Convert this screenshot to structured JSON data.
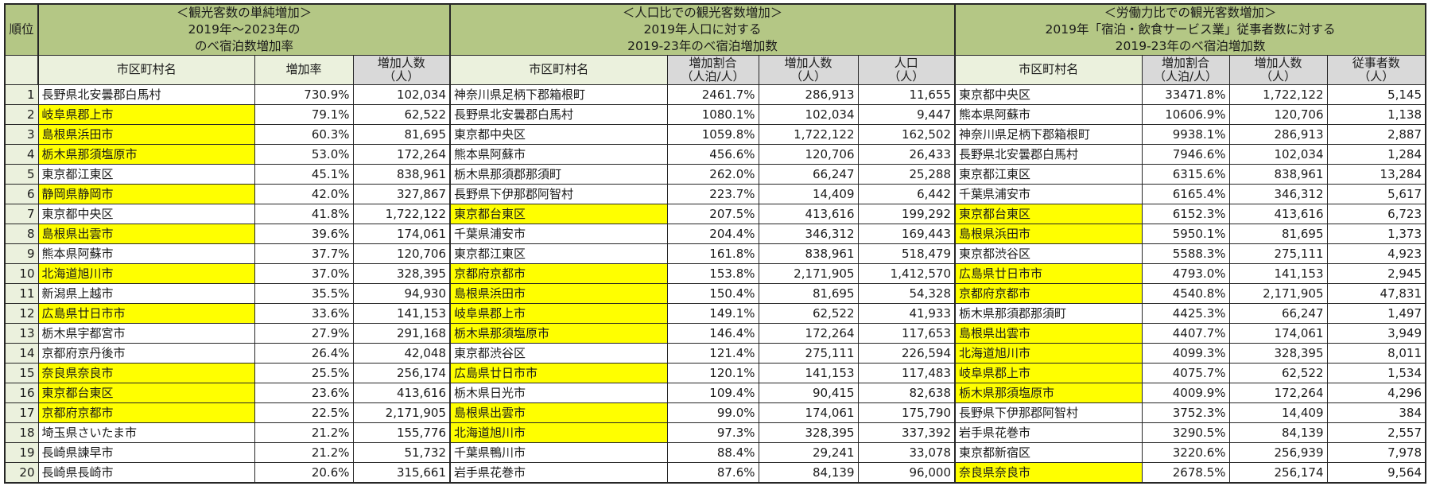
{
  "colors": {
    "band_green": "#b4c785",
    "header_light_green": "#ebf1dd",
    "header_gray": "#d9d9d9",
    "highlight_yellow": "#ffff00",
    "border": "#262626"
  },
  "header": {
    "rank": "順位",
    "groups": [
      {
        "title": "＜観光客数の単純増加＞\n2019年～2023年の\nのべ宿泊数増加率"
      },
      {
        "title": "＜人口比での観光客数増加＞\n2019年人口に対する\n2019-23年のべ宿泊増加数"
      },
      {
        "title": "＜労働力比での観光客数増加＞\n2019年「宿泊・飲食サービス業」従事者数に対する\n2019-23年のべ宿泊増加数"
      }
    ],
    "columns": {
      "s1_name": "市区町村名",
      "s1_rate": "増加率",
      "s1_count": "増加人数\n（人）",
      "s2_name": "市区町村名",
      "s2_ratio": "増加割合\n（人泊/人）",
      "s2_count": "増加人数\n（人）",
      "s2_pop": "人口\n（人）",
      "s3_name": "市区町村名",
      "s3_ratio": "増加割合\n（人泊/人）",
      "s3_count": "増加人数\n（人）",
      "s3_workers": "従事者数\n（人）"
    }
  },
  "rows": [
    {
      "rank": "1",
      "s1": {
        "name": "長野県北安曇郡白馬村",
        "hl": false,
        "rate": "730.9%",
        "count": "102,034"
      },
      "s2": {
        "name": "神奈川県足柄下郡箱根町",
        "hl": false,
        "ratio": "2461.7%",
        "count": "286,913",
        "pop": "11,655"
      },
      "s3": {
        "name": "東京都中央区",
        "hl": false,
        "ratio": "33471.8%",
        "count": "1,722,122",
        "workers": "5,145"
      }
    },
    {
      "rank": "2",
      "s1": {
        "name": "岐阜県郡上市",
        "hl": true,
        "rate": "79.1%",
        "count": "62,522"
      },
      "s2": {
        "name": "長野県北安曇郡白馬村",
        "hl": false,
        "ratio": "1080.1%",
        "count": "102,034",
        "pop": "9,447"
      },
      "s3": {
        "name": "熊本県阿蘇市",
        "hl": false,
        "ratio": "10606.9%",
        "count": "120,706",
        "workers": "1,138"
      }
    },
    {
      "rank": "3",
      "s1": {
        "name": "島根県浜田市",
        "hl": true,
        "rate": "60.3%",
        "count": "81,695"
      },
      "s2": {
        "name": "東京都中央区",
        "hl": false,
        "ratio": "1059.8%",
        "count": "1,722,122",
        "pop": "162,502"
      },
      "s3": {
        "name": "神奈川県足柄下郡箱根町",
        "hl": false,
        "ratio": "9938.1%",
        "count": "286,913",
        "workers": "2,887"
      }
    },
    {
      "rank": "4",
      "s1": {
        "name": "栃木県那須塩原市",
        "hl": true,
        "rate": "53.0%",
        "count": "172,264"
      },
      "s2": {
        "name": "熊本県阿蘇市",
        "hl": false,
        "ratio": "456.6%",
        "count": "120,706",
        "pop": "26,433"
      },
      "s3": {
        "name": "長野県北安曇郡白馬村",
        "hl": false,
        "ratio": "7946.6%",
        "count": "102,034",
        "workers": "1,284"
      }
    },
    {
      "rank": "5",
      "s1": {
        "name": "東京都江東区",
        "hl": false,
        "rate": "45.1%",
        "count": "838,961"
      },
      "s2": {
        "name": "栃木県那須郡那須町",
        "hl": false,
        "ratio": "262.0%",
        "count": "66,247",
        "pop": "25,288"
      },
      "s3": {
        "name": "東京都江東区",
        "hl": false,
        "ratio": "6315.6%",
        "count": "838,961",
        "workers": "13,284"
      }
    },
    {
      "rank": "6",
      "s1": {
        "name": "静岡県静岡市",
        "hl": true,
        "rate": "42.0%",
        "count": "327,867"
      },
      "s2": {
        "name": "長野県下伊那郡阿智村",
        "hl": false,
        "ratio": "223.7%",
        "count": "14,409",
        "pop": "6,442"
      },
      "s3": {
        "name": "千葉県浦安市",
        "hl": false,
        "ratio": "6165.4%",
        "count": "346,312",
        "workers": "5,617"
      }
    },
    {
      "rank": "7",
      "s1": {
        "name": "東京都中央区",
        "hl": false,
        "rate": "41.8%",
        "count": "1,722,122"
      },
      "s2": {
        "name": "東京都台東区",
        "hl": true,
        "ratio": "207.5%",
        "count": "413,616",
        "pop": "199,292"
      },
      "s3": {
        "name": "東京都台東区",
        "hl": true,
        "ratio": "6152.3%",
        "count": "413,616",
        "workers": "6,723"
      }
    },
    {
      "rank": "8",
      "s1": {
        "name": "島根県出雲市",
        "hl": true,
        "rate": "39.6%",
        "count": "174,061"
      },
      "s2": {
        "name": "千葉県浦安市",
        "hl": false,
        "ratio": "204.4%",
        "count": "346,312",
        "pop": "169,443"
      },
      "s3": {
        "name": "島根県浜田市",
        "hl": true,
        "ratio": "5950.1%",
        "count": "81,695",
        "workers": "1,373"
      }
    },
    {
      "rank": "9",
      "s1": {
        "name": "熊本県阿蘇市",
        "hl": false,
        "rate": "37.7%",
        "count": "120,706"
      },
      "s2": {
        "name": "東京都江東区",
        "hl": false,
        "ratio": "161.8%",
        "count": "838,961",
        "pop": "518,479"
      },
      "s3": {
        "name": "東京都渋谷区",
        "hl": false,
        "ratio": "5588.3%",
        "count": "275,111",
        "workers": "4,923"
      }
    },
    {
      "rank": "10",
      "s1": {
        "name": "北海道旭川市",
        "hl": true,
        "rate": "37.0%",
        "count": "328,395"
      },
      "s2": {
        "name": "京都府京都市",
        "hl": true,
        "ratio": "153.8%",
        "count": "2,171,905",
        "pop": "1,412,570"
      },
      "s3": {
        "name": "広島県廿日市市",
        "hl": true,
        "ratio": "4793.0%",
        "count": "141,153",
        "workers": "2,945"
      }
    },
    {
      "rank": "11",
      "s1": {
        "name": "新潟県上越市",
        "hl": false,
        "rate": "35.5%",
        "count": "94,930"
      },
      "s2": {
        "name": "島根県浜田市",
        "hl": true,
        "ratio": "150.4%",
        "count": "81,695",
        "pop": "54,328"
      },
      "s3": {
        "name": "京都府京都市",
        "hl": true,
        "ratio": "4540.8%",
        "count": "2,171,905",
        "workers": "47,831"
      }
    },
    {
      "rank": "12",
      "s1": {
        "name": "広島県廿日市市",
        "hl": true,
        "rate": "33.6%",
        "count": "141,153"
      },
      "s2": {
        "name": "岐阜県郡上市",
        "hl": true,
        "ratio": "149.1%",
        "count": "62,522",
        "pop": "41,933"
      },
      "s3": {
        "name": "栃木県那須郡那須町",
        "hl": false,
        "ratio": "4425.3%",
        "count": "66,247",
        "workers": "1,497"
      }
    },
    {
      "rank": "13",
      "s1": {
        "name": "栃木県宇都宮市",
        "hl": false,
        "rate": "27.9%",
        "count": "291,168"
      },
      "s2": {
        "name": "栃木県那須塩原市",
        "hl": true,
        "ratio": "146.4%",
        "count": "172,264",
        "pop": "117,653"
      },
      "s3": {
        "name": "島根県出雲市",
        "hl": true,
        "ratio": "4407.7%",
        "count": "174,061",
        "workers": "3,949"
      }
    },
    {
      "rank": "14",
      "s1": {
        "name": "京都府京丹後市",
        "hl": false,
        "rate": "26.4%",
        "count": "42,048"
      },
      "s2": {
        "name": "東京都渋谷区",
        "hl": false,
        "ratio": "121.4%",
        "count": "275,111",
        "pop": "226,594"
      },
      "s3": {
        "name": "北海道旭川市",
        "hl": true,
        "ratio": "4099.3%",
        "count": "328,395",
        "workers": "8,011"
      }
    },
    {
      "rank": "15",
      "s1": {
        "name": "奈良県奈良市",
        "hl": true,
        "rate": "25.5%",
        "count": "256,174"
      },
      "s2": {
        "name": "広島県廿日市市",
        "hl": true,
        "ratio": "120.1%",
        "count": "141,153",
        "pop": "117,483"
      },
      "s3": {
        "name": "岐阜県郡上市",
        "hl": true,
        "ratio": "4075.7%",
        "count": "62,522",
        "workers": "1,534"
      }
    },
    {
      "rank": "16",
      "s1": {
        "name": "東京都台東区",
        "hl": true,
        "rate": "23.6%",
        "count": "413,616"
      },
      "s2": {
        "name": "栃木県日光市",
        "hl": false,
        "ratio": "109.4%",
        "count": "90,415",
        "pop": "82,638"
      },
      "s3": {
        "name": "栃木県那須塩原市",
        "hl": true,
        "ratio": "4009.9%",
        "count": "172,264",
        "workers": "4,296"
      }
    },
    {
      "rank": "17",
      "s1": {
        "name": "京都府京都市",
        "hl": true,
        "rate": "22.5%",
        "count": "2,171,905"
      },
      "s2": {
        "name": "島根県出雲市",
        "hl": true,
        "ratio": "99.0%",
        "count": "174,061",
        "pop": "175,790"
      },
      "s3": {
        "name": "長野県下伊那郡阿智村",
        "hl": false,
        "ratio": "3752.3%",
        "count": "14,409",
        "workers": "384"
      }
    },
    {
      "rank": "18",
      "s1": {
        "name": "埼玉県さいたま市",
        "hl": false,
        "rate": "21.2%",
        "count": "155,776"
      },
      "s2": {
        "name": "北海道旭川市",
        "hl": true,
        "ratio": "97.3%",
        "count": "328,395",
        "pop": "337,392"
      },
      "s3": {
        "name": "岩手県花巻市",
        "hl": false,
        "ratio": "3290.5%",
        "count": "84,139",
        "workers": "2,557"
      }
    },
    {
      "rank": "19",
      "s1": {
        "name": "長崎県諫早市",
        "hl": false,
        "rate": "21.2%",
        "count": "51,732"
      },
      "s2": {
        "name": "千葉県鴨川市",
        "hl": false,
        "ratio": "88.4%",
        "count": "29,241",
        "pop": "33,078"
      },
      "s3": {
        "name": "東京都新宿区",
        "hl": false,
        "ratio": "3220.6%",
        "count": "256,939",
        "workers": "7,978"
      }
    },
    {
      "rank": "20",
      "s1": {
        "name": "長崎県長崎市",
        "hl": false,
        "rate": "20.6%",
        "count": "315,661"
      },
      "s2": {
        "name": "岩手県花巻市",
        "hl": false,
        "ratio": "87.6%",
        "count": "84,139",
        "pop": "96,000"
      },
      "s3": {
        "name": "奈良県奈良市",
        "hl": true,
        "ratio": "2678.5%",
        "count": "256,174",
        "workers": "9,564"
      }
    }
  ]
}
